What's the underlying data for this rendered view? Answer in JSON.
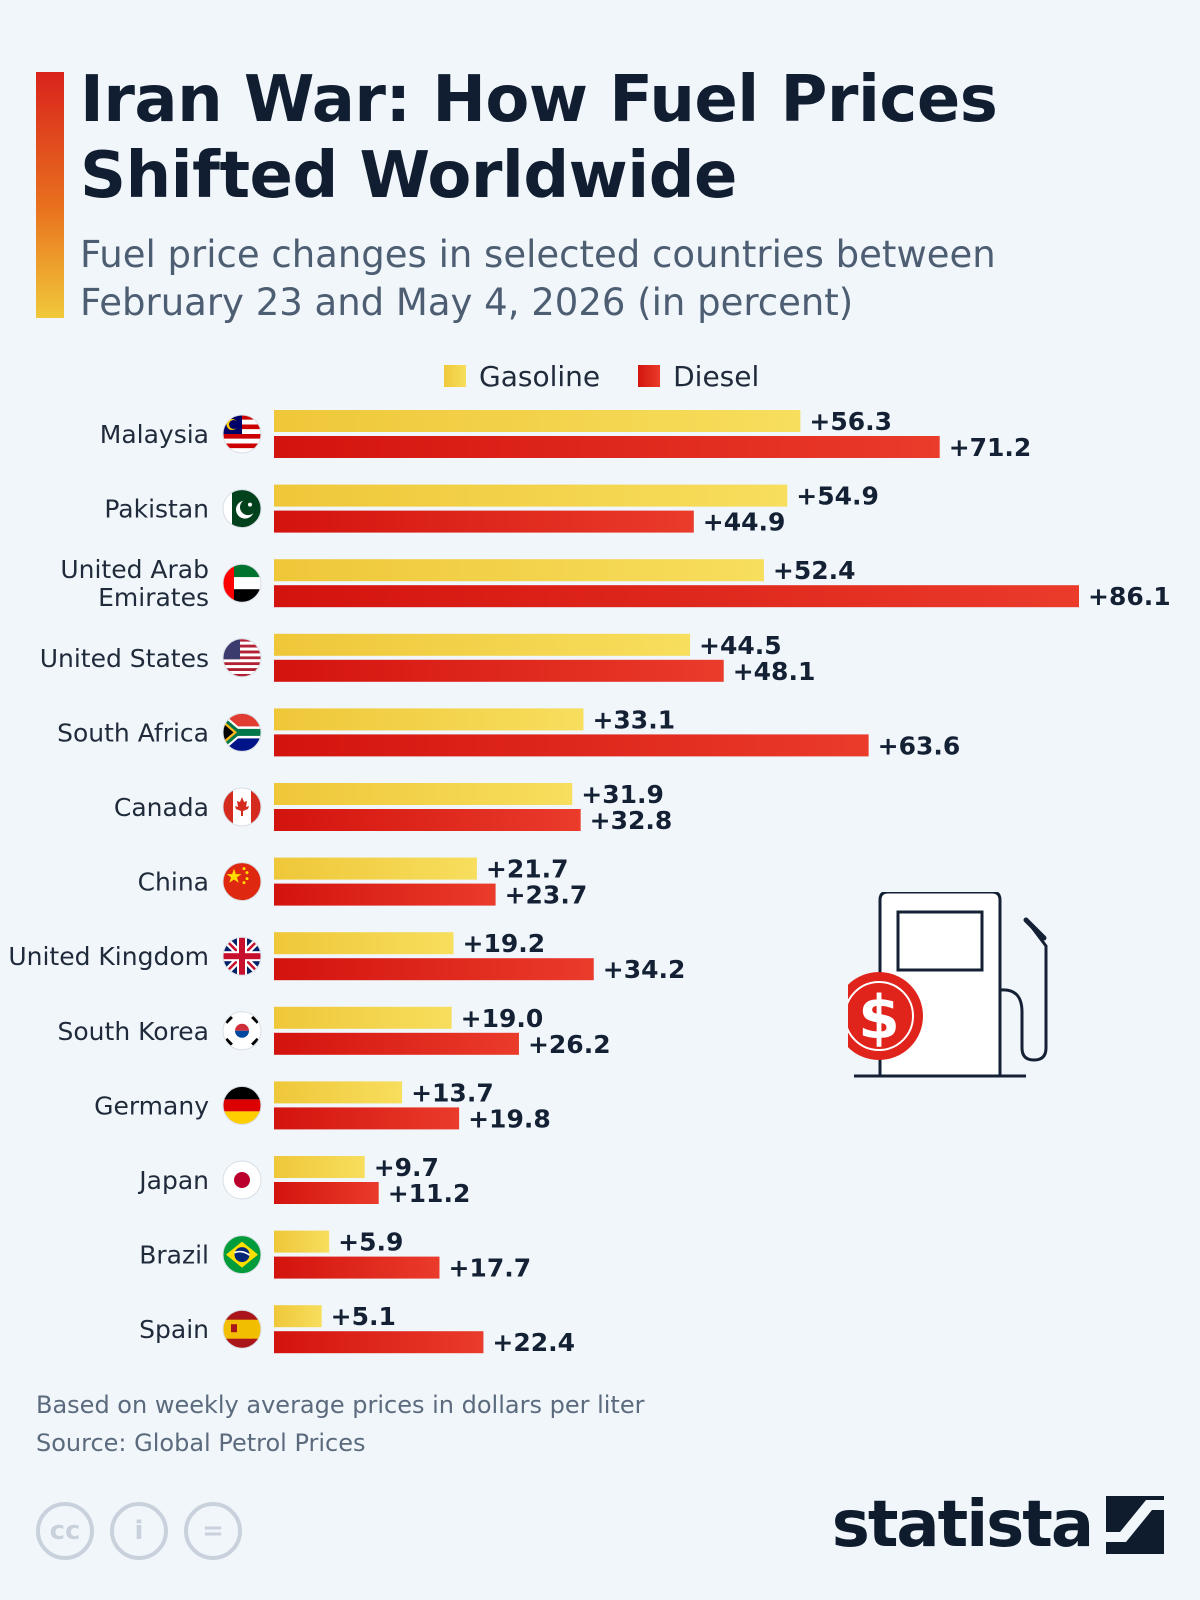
{
  "header": {
    "title": "Iran War: How Fuel Prices Shifted Worldwide",
    "subtitle": "Fuel price changes in selected countries between February 23 and May 4, 2026 (in percent)"
  },
  "colors": {
    "accent_top": "#d9231d",
    "accent_bottom": "#f1c93a",
    "gasoline": "#f0cd3c",
    "diesel": "#d81b13",
    "title": "#111e31"
  },
  "chart_data": {
    "type": "bar",
    "orientation": "horizontal",
    "categories": [
      "Malaysia",
      "Pakistan",
      "United Arab Emirates",
      "United States",
      "South Africa",
      "Canada",
      "China",
      "United Kingdom",
      "South Korea",
      "Germany",
      "Japan",
      "Brazil",
      "Spain"
    ],
    "series": [
      {
        "name": "Gasoline",
        "color": "#f0cd3c",
        "values": [
          56.3,
          54.9,
          52.4,
          44.5,
          33.1,
          31.9,
          21.7,
          19.2,
          19.0,
          13.7,
          9.7,
          5.9,
          5.1
        ],
        "labels": [
          "+56.3",
          "+54.9",
          "+52.4",
          "+44.5",
          "+33.1",
          "+31.9",
          "+21.7",
          "+19.2",
          "+19.0",
          "+13.7",
          "+9.7",
          "+5.9",
          "+5.1"
        ]
      },
      {
        "name": "Diesel",
        "color": "#d81b13",
        "values": [
          71.2,
          44.9,
          86.1,
          48.1,
          63.6,
          32.8,
          23.7,
          34.2,
          26.2,
          19.8,
          11.2,
          17.7,
          22.4
        ],
        "labels": [
          "+71.2",
          "+44.9",
          "+86.1",
          "+48.1",
          "+63.6",
          "+32.8",
          "+23.7",
          "+34.2",
          "+26.2",
          "+19.8",
          "+11.2",
          "+17.7",
          "+22.4"
        ]
      }
    ],
    "xlim": [
      0,
      86.1
    ],
    "grid": false,
    "legend_position": "top-center",
    "flags": [
      "malaysia-flag-icon",
      "pakistan-flag-icon",
      "uae-flag-icon",
      "usa-flag-icon",
      "south-africa-flag-icon",
      "canada-flag-icon",
      "china-flag-icon",
      "uk-flag-icon",
      "south-korea-flag-icon",
      "germany-flag-icon",
      "japan-flag-icon",
      "brazil-flag-icon",
      "spain-flag-icon"
    ]
  },
  "illustration": {
    "icon": "fuel-pump-dollar-icon",
    "symbol": "$"
  },
  "footer": {
    "note": "Based on weekly average prices in dollars per liter",
    "source": "Source: Global Petrol Prices",
    "license_icons": [
      "cc-icon",
      "attribution-icon",
      "no-derivatives-icon"
    ],
    "license_glyphs": [
      "cc",
      "i",
      "="
    ],
    "brand": "statista"
  }
}
